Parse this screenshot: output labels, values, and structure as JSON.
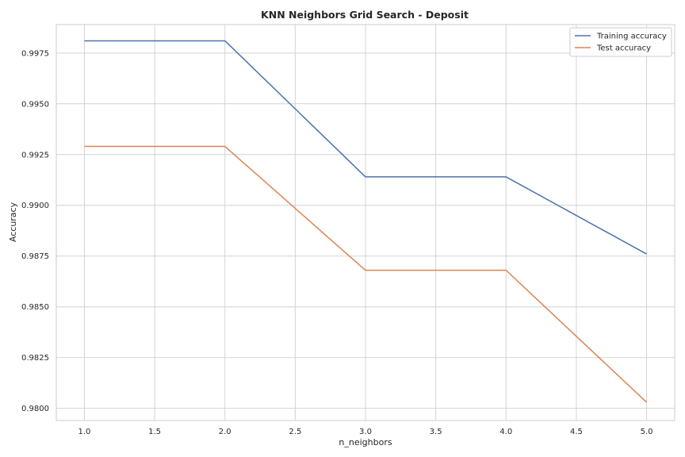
{
  "chart_data": {
    "type": "line",
    "title": "KNN Neighbors Grid Search - Deposit",
    "xlabel": "n_neighbors",
    "ylabel": "Accuracy",
    "x": [
      1.0,
      2.0,
      3.0,
      4.0,
      5.0
    ],
    "xlim": [
      0.8,
      5.2
    ],
    "ylim": [
      0.9794,
      0.9989
    ],
    "x_ticks": [
      1.0,
      1.5,
      2.0,
      2.5,
      3.0,
      3.5,
      4.0,
      4.5,
      5.0
    ],
    "y_ticks": [
      0.98,
      0.9825,
      0.985,
      0.9875,
      0.99,
      0.9925,
      0.995,
      0.9975
    ],
    "x_tick_labels": [
      "1.0",
      "1.5",
      "2.0",
      "2.5",
      "3.0",
      "3.5",
      "4.0",
      "4.5",
      "5.0"
    ],
    "y_tick_labels": [
      "0.9800",
      "0.9825",
      "0.9850",
      "0.9875",
      "0.9900",
      "0.9925",
      "0.9950",
      "0.9975"
    ],
    "grid": true,
    "legend_position": "top-right",
    "series": [
      {
        "name": "Training accuracy",
        "color": "#4c72b0",
        "values": [
          0.9981,
          0.9981,
          0.9914,
          0.9914,
          0.9876
        ]
      },
      {
        "name": "Test accuracy",
        "color": "#dd8452",
        "values": [
          0.9929,
          0.9929,
          0.9868,
          0.9868,
          0.9803
        ]
      }
    ]
  }
}
